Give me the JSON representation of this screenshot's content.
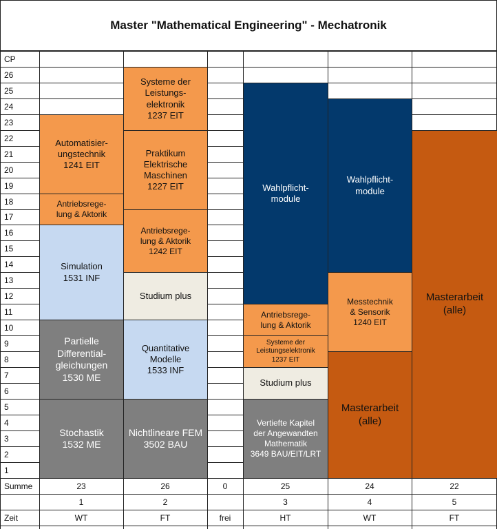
{
  "title": "Master \"Mathematical Engineering\" - Mechatronik",
  "cp_header": "CP",
  "cp_rows": [
    "26",
    "25",
    "24",
    "23",
    "22",
    "21",
    "20",
    "19",
    "18",
    "17",
    "16",
    "15",
    "14",
    "13",
    "12",
    "11",
    "10",
    "9",
    "8",
    "7",
    "6",
    "5",
    "4",
    "3",
    "2",
    "1"
  ],
  "summe_label": "Summe",
  "zeit_label": "Zeit",
  "columns": [
    {
      "summe": "23",
      "number": "1",
      "zeit": "WT"
    },
    {
      "summe": "26",
      "number": "2",
      "zeit": "FT"
    },
    {
      "summe": "0",
      "number": "",
      "zeit": "frei"
    },
    {
      "summe": "25",
      "number": "3",
      "zeit": "HT"
    },
    {
      "summe": "24",
      "number": "4",
      "zeit": "WT"
    },
    {
      "summe": "22",
      "number": "5",
      "zeit": "FT"
    }
  ],
  "modules": {
    "c1_automatisierung": "Automatisier-\nungstechnik\n1241 EIT",
    "c1_antriebsregelung": "Antriebsrege-\nlung & Aktorik",
    "c1_simulation": "Simulation\n1531 INF",
    "c1_pde": "Partielle\nDifferential-\ngleichungen\n1530 ME",
    "c1_stochastik": "Stochastik\n1532 ME",
    "c2_leistungselektronik": "Systeme der\nLeistungs-\nelektronik\n1237 EIT",
    "c2_praktikum": "Praktikum\nElektrische\nMaschinen\n1227 EIT",
    "c2_antriebsregelung": "Antriebsrege-\nlung & Aktorik\n1242 EIT",
    "c2_studium_plus": "Studium plus",
    "c2_quantitative": "Quantitative\nModelle\n1533 INF",
    "c2_fem": "Nichtlineare FEM\n3502 BAU",
    "c3_wahlpflicht": "Wahlpflicht-\nmodule",
    "c3_antriebsregelung": "Antriebsrege-\nlung & Aktorik",
    "c3_leistungselektronik": "Systeme der\nLeistungselektronik\n1237 EIT",
    "c3_studium_plus": "Studium plus",
    "c3_vertiefte": "Vertiefte Kapitel\nder Angewandten\nMathematik\n3649 BAU/EIT/LRT",
    "c4_wahlpflicht": "Wahlpflicht-\nmodule",
    "c4_messtechnik": "Messtechnik\n& Sensorik\n1240 EIT",
    "c4_masterarbeit": "Masterarbeit\n(alle)",
    "c5_masterarbeit": "Masterarbeit\n(alle)"
  },
  "colors": {
    "orange": "#f4994c",
    "dark_orange": "#c55a11",
    "navy": "#03396c",
    "light_blue": "#c6d9f1",
    "gray": "#7f7f7f",
    "cream": "#efece2"
  }
}
